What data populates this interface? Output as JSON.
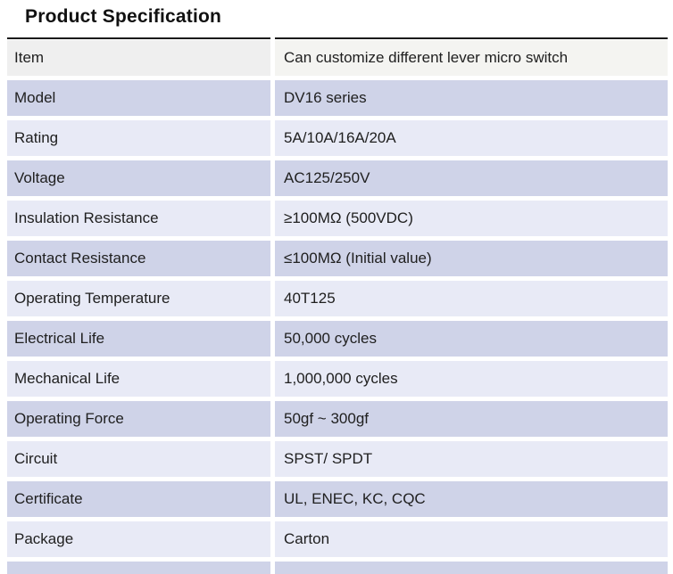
{
  "page": {
    "title": "Product Specification"
  },
  "colors": {
    "rule": "#1a1a1a",
    "header_label_bg": "#efefef",
    "header_value_bg": "#f4f4f1",
    "row_dark_bg": "#cfd3e8",
    "row_light_bg": "#e8eaf6",
    "text": "#202020"
  },
  "table": {
    "rows": [
      {
        "label": "Item",
        "value": "Can customize different lever micro switch"
      },
      {
        "label": "Model",
        "value": "DV16 series"
      },
      {
        "label": "Rating",
        "value": "5A/10A/16A/20A"
      },
      {
        "label": "Voltage",
        "value": "AC125/250V"
      },
      {
        "label": "Insulation Resistance",
        "value": "≥100MΩ (500VDC)"
      },
      {
        "label": "Contact Resistance",
        "value": "≤100MΩ (Initial value)"
      },
      {
        "label": "Operating Temperature",
        "value": "40T125"
      },
      {
        "label": "Electrical Life",
        "value": "50,000 cycles"
      },
      {
        "label": "Mechanical Life",
        "value": "1,000,000 cycles"
      },
      {
        "label": "Operating Force",
        "value": "50gf ~ 300gf"
      },
      {
        "label": "Circuit",
        "value": "SPST/ SPDT"
      },
      {
        "label": "Certificate",
        "value": "UL, ENEC, KC, CQC"
      },
      {
        "label": "Package",
        "value": "Carton"
      }
    ]
  }
}
